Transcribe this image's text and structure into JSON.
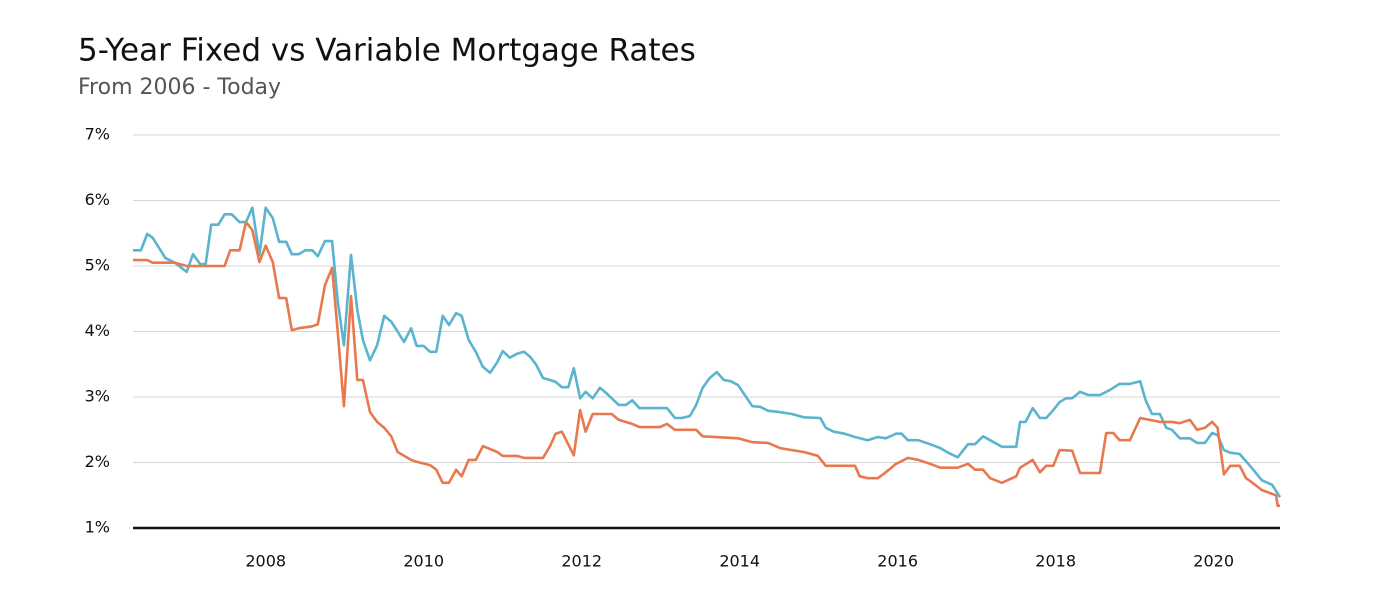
{
  "chart_data": {
    "type": "line",
    "title": "5-Year Fixed vs Variable Mortgage Rates",
    "subtitle": "From 2006 - Today",
    "xlim": [
      2006.32,
      2020.84
    ],
    "xticks": [
      2008,
      2010,
      2012,
      2014,
      2016,
      2018,
      2020
    ],
    "ylim": [
      1,
      7
    ],
    "yticks": [
      {
        "value": 1,
        "label": "1%"
      },
      {
        "value": 2,
        "label": "2%"
      },
      {
        "value": 3,
        "label": "3%"
      },
      {
        "value": 4,
        "label": "4%"
      },
      {
        "value": 5,
        "label": "5%"
      },
      {
        "value": 6,
        "label": "6%"
      },
      {
        "value": 7,
        "label": "7%"
      }
    ],
    "grid": true,
    "series": [
      {
        "color": "#5ab4cf",
        "x": [
          2006.32,
          2006.42,
          2006.5,
          2006.57,
          2006.73,
          2006.85,
          2007.0,
          2007.08,
          2007.17,
          2007.24,
          2007.31,
          2007.4,
          2007.48,
          2007.57,
          2007.67,
          2007.75,
          2007.83,
          2007.92,
          2008.0,
          2008.09,
          2008.17,
          2008.26,
          2008.33,
          2008.42,
          2008.5,
          2008.59,
          2008.66,
          2008.75,
          2008.84,
          2008.91,
          2008.99,
          2009.08,
          2009.16,
          2009.23,
          2009.32,
          2009.41,
          2009.5,
          2009.59,
          2009.67,
          2009.75,
          2009.84,
          2009.91,
          2010.0,
          2010.08,
          2010.16,
          2010.24,
          2010.32,
          2010.41,
          2010.48,
          2010.57,
          2010.66,
          2010.75,
          2010.84,
          2010.93,
          2011.0,
          2011.09,
          2011.18,
          2011.27,
          2011.35,
          2011.42,
          2011.51,
          2011.6,
          2011.67,
          2011.75,
          2011.83,
          2011.9,
          2011.98,
          2012.05,
          2012.14,
          2012.23,
          2012.31,
          2012.38,
          2012.47,
          2012.56,
          2012.64,
          2012.73,
          2012.81,
          2012.99,
          2013.08,
          2013.18,
          2013.27,
          2013.37,
          2013.45,
          2013.53,
          2013.62,
          2013.71,
          2013.8,
          2013.89,
          2013.98,
          2014.07,
          2014.16,
          2014.26,
          2014.36,
          2014.51,
          2014.66,
          2014.81,
          2015.02,
          2015.09,
          2015.19,
          2015.33,
          2015.46,
          2015.62,
          2015.75,
          2015.85,
          2015.98,
          2016.05,
          2016.13,
          2016.26,
          2016.41,
          2016.54,
          2016.64,
          2016.76,
          2016.89,
          2016.98,
          2017.08,
          2017.17,
          2017.32,
          2017.5,
          2017.55,
          2017.62,
          2017.71,
          2017.8,
          2017.88,
          2017.97,
          2018.05,
          2018.13,
          2018.21,
          2018.31,
          2018.41,
          2018.56,
          2018.69,
          2018.81,
          2018.94,
          2019.07,
          2019.14,
          2019.22,
          2019.32,
          2019.4,
          2019.47,
          2019.57,
          2019.7,
          2019.79,
          2019.89,
          2019.98,
          2020.05,
          2020.13,
          2020.21,
          2020.33,
          2020.48,
          2020.61,
          2020.74,
          2020.84
        ],
        "values": [
          5.24,
          5.24,
          5.49,
          5.43,
          5.12,
          5.05,
          4.91,
          5.18,
          5.03,
          5.03,
          5.63,
          5.63,
          5.79,
          5.79,
          5.67,
          5.67,
          5.89,
          5.17,
          5.89,
          5.73,
          5.37,
          5.37,
          5.18,
          5.18,
          5.24,
          5.24,
          5.15,
          5.38,
          5.38,
          4.48,
          3.79,
          5.17,
          4.33,
          3.87,
          3.56,
          3.79,
          4.24,
          4.15,
          4.0,
          3.84,
          4.05,
          3.78,
          3.78,
          3.69,
          3.69,
          4.24,
          4.1,
          4.28,
          4.24,
          3.87,
          3.69,
          3.46,
          3.37,
          3.53,
          3.7,
          3.6,
          3.66,
          3.69,
          3.61,
          3.5,
          3.29,
          3.26,
          3.23,
          3.15,
          3.15,
          3.44,
          2.98,
          3.08,
          2.98,
          3.14,
          3.06,
          2.98,
          2.88,
          2.88,
          2.95,
          2.83,
          2.83,
          2.83,
          2.83,
          2.68,
          2.68,
          2.71,
          2.88,
          3.14,
          3.29,
          3.38,
          3.26,
          3.24,
          3.18,
          3.02,
          2.86,
          2.85,
          2.79,
          2.77,
          2.74,
          2.69,
          2.68,
          2.53,
          2.47,
          2.44,
          2.39,
          2.34,
          2.39,
          2.37,
          2.44,
          2.44,
          2.34,
          2.34,
          2.28,
          2.22,
          2.15,
          2.08,
          2.28,
          2.28,
          2.4,
          2.34,
          2.24,
          2.24,
          2.62,
          2.62,
          2.83,
          2.68,
          2.68,
          2.8,
          2.92,
          2.98,
          2.98,
          3.08,
          3.03,
          3.03,
          3.11,
          3.2,
          3.2,
          3.24,
          2.95,
          2.74,
          2.74,
          2.53,
          2.5,
          2.37,
          2.37,
          2.3,
          2.3,
          2.45,
          2.42,
          2.19,
          2.15,
          2.13,
          1.92,
          1.73,
          1.66,
          1.47
        ]
      },
      {
        "color": "#e8794f",
        "x": [
          2006.32,
          2006.5,
          2006.57,
          2006.85,
          2007.0,
          2007.48,
          2007.55,
          2007.67,
          2007.75,
          2007.83,
          2007.92,
          2008.0,
          2008.09,
          2008.17,
          2008.26,
          2008.33,
          2008.42,
          2008.59,
          2008.66,
          2008.75,
          2008.84,
          2008.91,
          2008.99,
          2009.08,
          2009.16,
          2009.23,
          2009.32,
          2009.41,
          2009.5,
          2009.59,
          2009.67,
          2009.84,
          2009.91,
          2010.08,
          2010.16,
          2010.24,
          2010.32,
          2010.41,
          2010.48,
          2010.57,
          2010.66,
          2010.75,
          2010.93,
          2011.0,
          2011.18,
          2011.27,
          2011.51,
          2011.6,
          2011.67,
          2011.75,
          2011.9,
          2011.98,
          2012.05,
          2012.14,
          2012.38,
          2012.47,
          2012.64,
          2012.73,
          2012.99,
          2013.08,
          2013.18,
          2013.45,
          2013.53,
          2013.98,
          2014.16,
          2014.36,
          2014.51,
          2014.81,
          2014.99,
          2015.09,
          2015.33,
          2015.46,
          2015.52,
          2015.62,
          2015.75,
          2015.85,
          2015.98,
          2016.13,
          2016.26,
          2016.41,
          2016.54,
          2016.76,
          2016.89,
          2016.98,
          2017.08,
          2017.17,
          2017.32,
          2017.5,
          2017.55,
          2017.71,
          2017.8,
          2017.88,
          2017.97,
          2018.05,
          2018.21,
          2018.31,
          2018.56,
          2018.64,
          2018.73,
          2018.81,
          2018.94,
          2019.07,
          2019.19,
          2019.32,
          2019.47,
          2019.57,
          2019.7,
          2019.79,
          2019.89,
          2019.98,
          2020.05,
          2020.13,
          2020.21,
          2020.33,
          2020.41,
          2020.48,
          2020.61,
          2020.74,
          2020.79,
          2020.81,
          2020.84
        ],
        "values": [
          5.09,
          5.09,
          5.05,
          5.05,
          5.0,
          5.0,
          5.24,
          5.24,
          5.67,
          5.55,
          5.06,
          5.31,
          5.06,
          4.51,
          4.51,
          4.02,
          4.05,
          4.08,
          4.11,
          4.71,
          4.97,
          4.02,
          2.86,
          4.54,
          3.26,
          3.26,
          2.77,
          2.62,
          2.53,
          2.4,
          2.16,
          2.04,
          2.01,
          1.96,
          1.89,
          1.69,
          1.69,
          1.89,
          1.79,
          2.04,
          2.04,
          2.25,
          2.16,
          2.1,
          2.1,
          2.07,
          2.07,
          2.25,
          2.44,
          2.47,
          2.11,
          2.8,
          2.47,
          2.74,
          2.74,
          2.65,
          2.59,
          2.54,
          2.54,
          2.59,
          2.5,
          2.5,
          2.4,
          2.37,
          2.31,
          2.3,
          2.22,
          2.16,
          2.1,
          1.95,
          1.95,
          1.95,
          1.79,
          1.76,
          1.76,
          1.85,
          1.98,
          2.07,
          2.04,
          1.98,
          1.92,
          1.92,
          1.98,
          1.89,
          1.89,
          1.76,
          1.69,
          1.79,
          1.92,
          2.04,
          1.85,
          1.95,
          1.95,
          2.19,
          2.18,
          1.84,
          1.84,
          2.45,
          2.45,
          2.34,
          2.34,
          2.68,
          2.65,
          2.62,
          2.62,
          2.6,
          2.65,
          2.5,
          2.53,
          2.62,
          2.53,
          1.82,
          1.95,
          1.95,
          1.76,
          1.7,
          1.58,
          1.52,
          1.5,
          1.34,
          1.34
        ]
      }
    ]
  }
}
